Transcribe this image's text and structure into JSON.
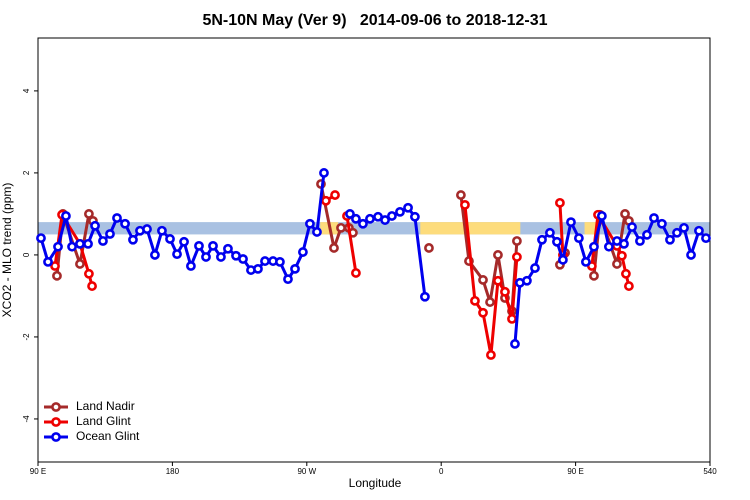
{
  "chart_data": {
    "type": "line",
    "title": "5N-10N May (Ver 9)   2014-09-06 to 2018-12-31",
    "xlabel": "Longitude",
    "ylabel": "XCO2 - MLO trend (ppm)",
    "xlim": [
      90,
      540
    ],
    "ylim": [
      -5.05,
      5.29
    ],
    "xticks": [
      {
        "value": 90,
        "label": "90 E"
      },
      180,
      {
        "value": 270,
        "label": "90 W"
      },
      {
        "value": 360,
        "label": "0"
      },
      {
        "value": 450,
        "label": "90 E"
      },
      540
    ],
    "yticks": [
      -4,
      -2,
      0,
      2,
      4
    ],
    "legend": "bottomleft",
    "band": {
      "ylim": [
        0.5,
        0.8
      ],
      "color": "#a9c1e2",
      "land_color": "#fddc7c",
      "land_ranges": [
        [
          279,
          291
        ],
        [
          346,
          413
        ],
        [
          456,
          466
        ]
      ]
    },
    "series": [
      {
        "name": "Land Nadir",
        "color": "#a52a2a",
        "x": [
          102.7,
          106.7,
          118.1,
          124.1,
          126.8,
          null,
          279.5,
          288.2,
          292.9,
          298.2,
          300.9,
          null,
          351.8,
          null,
          373.2,
          378.6,
          388.0,
          392.7,
          398.0,
          402.7,
          407.4,
          410.7,
          null,
          439.5,
          442.9,
          null,
          462.3,
          466.3,
          477.7,
          483.1,
          485.7
        ],
        "values": [
          -0.51,
          1.0,
          -0.22,
          1.0,
          0.83,
          null,
          1.73,
          0.17,
          0.66,
          0.66,
          0.54,
          null,
          0.17,
          null,
          1.46,
          -0.15,
          -0.61,
          -1.15,
          0.0,
          -1.05,
          -1.37,
          0.34,
          null,
          -0.24,
          0.05,
          null,
          -0.51,
          0.98,
          -0.22,
          1.0,
          0.83
        ]
      },
      {
        "name": "Land Glint",
        "color": "#ee0000",
        "x": [
          101.4,
          106.1,
          118.1,
          124.1,
          126.2,
          null,
          282.8,
          288.9,
          null,
          296.9,
          302.9,
          null,
          375.9,
          382.6,
          388.0,
          393.3,
          398.0,
          402.7,
          407.4,
          410.7,
          null,
          439.5,
          441.5,
          null,
          460.9,
          465.0,
          477.7,
          481.0,
          483.7,
          485.7
        ],
        "values": [
          -0.27,
          0.98,
          0.27,
          -0.46,
          -0.76,
          null,
          1.32,
          1.46,
          null,
          0.95,
          -0.44,
          null,
          1.22,
          -1.12,
          -1.41,
          -2.44,
          -0.63,
          -0.9,
          -1.56,
          -0.05,
          null,
          1.27,
          0.0,
          null,
          -0.27,
          0.98,
          0.22,
          -0.02,
          -0.46,
          -0.76
        ]
      },
      {
        "name": "Ocean Glint",
        "color": "#0000ee",
        "x": [
          92.0,
          96.7,
          103.4,
          108.7,
          112.8,
          118.1,
          123.5,
          128.2,
          133.5,
          138.2,
          142.9,
          148.3,
          153.6,
          158.3,
          163.0,
          168.3,
          173.0,
          178.4,
          183.1,
          187.8,
          192.4,
          197.8,
          202.5,
          207.2,
          212.5,
          217.2,
          222.6,
          227.3,
          232.6,
          237.3,
          242.0,
          247.4,
          252.0,
          257.4,
          262.1,
          267.4,
          272.1,
          276.8,
          281.5,
          null,
          298.9,
          302.9,
          307.6,
          312.3,
          317.7,
          322.4,
          327.0,
          332.4,
          337.8,
          342.4,
          349.1,
          null,
          409.4,
          412.7,
          417.4,
          422.8,
          427.5,
          432.8,
          437.5,
          441.5,
          446.9,
          452.2,
          456.9,
          462.3,
          467.6,
          472.3,
          477.7,
          482.4,
          487.8,
          493.1,
          497.8,
          502.5,
          507.8,
          513.2,
          517.9,
          522.6,
          527.3,
          532.6,
          537.3
        ],
        "values": [
          0.41,
          -0.17,
          0.2,
          0.95,
          0.2,
          0.27,
          0.27,
          0.71,
          0.34,
          0.51,
          0.9,
          0.76,
          0.37,
          0.59,
          0.63,
          0.0,
          0.59,
          0.39,
          0.02,
          0.32,
          -0.27,
          0.22,
          -0.05,
          0.22,
          -0.05,
          0.15,
          -0.02,
          -0.1,
          -0.37,
          -0.34,
          -0.15,
          -0.15,
          -0.17,
          -0.59,
          -0.34,
          0.07,
          0.76,
          0.56,
          2.0,
          null,
          1.0,
          0.88,
          0.76,
          0.88,
          0.93,
          0.85,
          0.95,
          1.05,
          1.15,
          0.93,
          -1.02,
          null,
          -2.17,
          -0.68,
          -0.63,
          -0.32,
          0.37,
          0.54,
          0.32,
          -0.12,
          0.8,
          0.41,
          -0.17,
          0.2,
          0.95,
          0.2,
          0.34,
          0.27,
          0.68,
          0.34,
          0.49,
          0.9,
          0.76,
          0.37,
          0.54,
          0.66,
          0.0,
          0.59,
          0.41
        ]
      }
    ]
  }
}
